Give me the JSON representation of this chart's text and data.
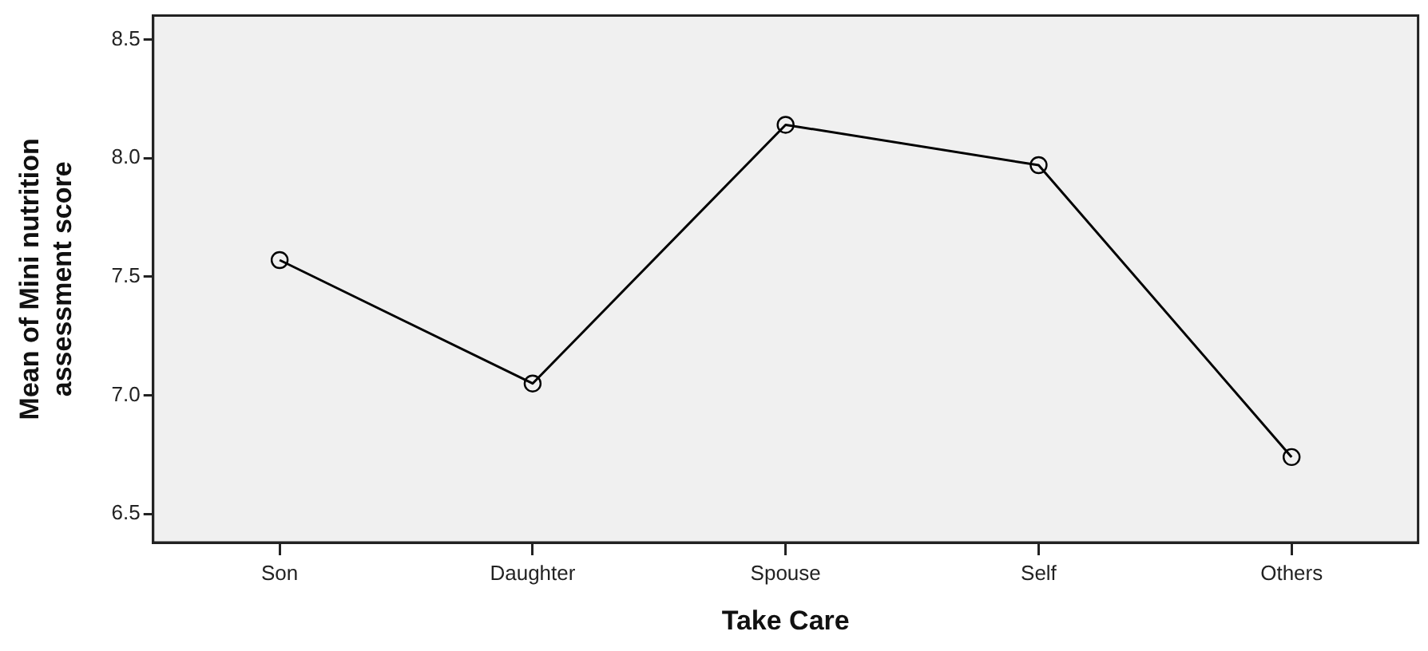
{
  "chart_data": {
    "type": "line",
    "xlabel": "Take Care",
    "ylabel": "Mean of Mini nutrition\nassessment score",
    "categories": [
      "Son",
      "Daughter",
      "Spouse",
      "Self",
      "Others"
    ],
    "series": [
      {
        "color": "#000000",
        "values": [
          7.57,
          7.05,
          8.14,
          7.97,
          6.74
        ]
      }
    ],
    "ylim": [
      6.38,
      8.6
    ],
    "yticks": [
      {
        "value": 6.5,
        "label": "6.5"
      },
      {
        "value": 7,
        "label": "7.0"
      },
      {
        "value": 7.5,
        "label": "7.5"
      },
      {
        "value": 8,
        "label": "8.0"
      },
      {
        "value": 8.5,
        "label": "8.5"
      }
    ],
    "grid": false,
    "legend": false,
    "marker": "circle",
    "line_style": "solid"
  }
}
